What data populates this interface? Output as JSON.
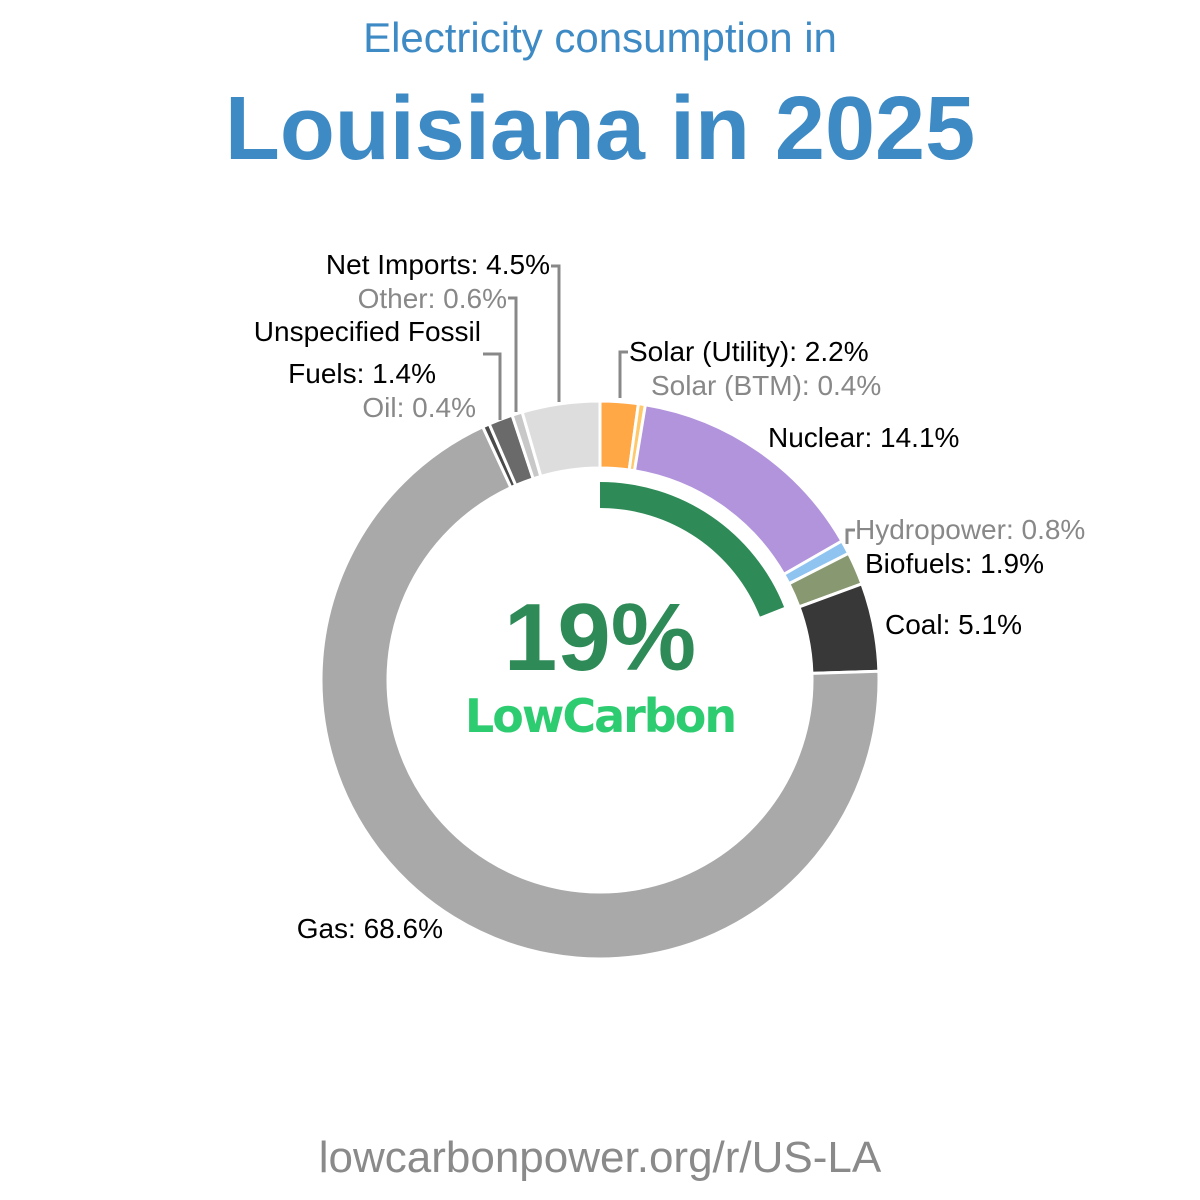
{
  "header": {
    "subtitle": "Electricity consumption in",
    "title": "Louisiana in 2025"
  },
  "footer": {
    "url": "lowcarbonpower.org/r/US-LA"
  },
  "center": {
    "percent": "19%",
    "label": "LowCarbon",
    "percent_color": "#2e8b57",
    "label_color": "#2ecc71",
    "lowcarbon_share": 19
  },
  "chart_data": {
    "type": "pie",
    "variant": "donut",
    "start": "top",
    "direction": "clockwise",
    "slices": [
      {
        "name": "Solar (Utility)",
        "label": "Solar (Utility): 2.2%",
        "value": 2.2,
        "color": "#ffa845",
        "label_color": "#000000"
      },
      {
        "name": "Solar (BTM)",
        "label": "Solar (BTM): 0.4%",
        "value": 0.4,
        "color": "#ffc86b",
        "label_color": "#888888"
      },
      {
        "name": "Nuclear",
        "label": "Nuclear: 14.1%",
        "value": 14.1,
        "color": "#b294dc",
        "label_color": "#000000"
      },
      {
        "name": "Hydropower",
        "label": "Hydropower: 0.8%",
        "value": 0.8,
        "color": "#8fc3f0",
        "label_color": "#888888"
      },
      {
        "name": "Biofuels",
        "label": "Biofuels: 1.9%",
        "value": 1.9,
        "color": "#889870",
        "label_color": "#000000"
      },
      {
        "name": "Coal",
        "label": "Coal: 5.1%",
        "value": 5.1,
        "color": "#383838",
        "label_color": "#000000"
      },
      {
        "name": "Gas",
        "label": "Gas: 68.6%",
        "value": 68.6,
        "color": "#a9a9a9",
        "label_color": "#000000"
      },
      {
        "name": "Oil",
        "label": "Oil: 0.4%",
        "value": 0.4,
        "color": "#4a4a4a",
        "label_color": "#888888"
      },
      {
        "name": "Unspecified Fossil Fuels",
        "label": "Unspecified Fossil\nFuels: 1.4%",
        "value": 1.4,
        "color": "#6a6a6a",
        "label_color": "#000000"
      },
      {
        "name": "Other",
        "label": "Other: 0.6%",
        "value": 0.6,
        "color": "#c8c8c8",
        "label_color": "#888888"
      },
      {
        "name": "Net Imports",
        "label": "Net Imports: 4.5%",
        "value": 4.5,
        "color": "#dddddd",
        "label_color": "#000000"
      }
    ]
  }
}
